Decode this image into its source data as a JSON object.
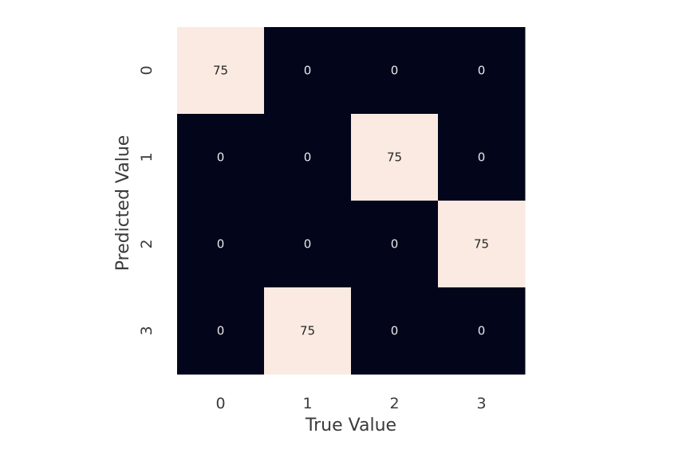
{
  "chart_data": {
    "type": "heatmap",
    "title": "",
    "xlabel": "True Value",
    "ylabel": "Predicted Value",
    "x_tick_labels": [
      "0",
      "1",
      "2",
      "3"
    ],
    "y_tick_labels": [
      "0",
      "1",
      "2",
      "3"
    ],
    "values": [
      [
        75,
        0,
        0,
        0
      ],
      [
        0,
        0,
        75,
        0
      ],
      [
        0,
        0,
        0,
        75
      ],
      [
        0,
        75,
        0,
        0
      ]
    ],
    "annotations": true,
    "colorbar": false,
    "value_range": [
      0,
      75
    ],
    "colors": {
      "low": "#03051a",
      "high": "#faeae1",
      "text_on_low": "#e8e8ee",
      "text_on_high": "#262626",
      "axis_text": "#3a3a3a"
    }
  }
}
